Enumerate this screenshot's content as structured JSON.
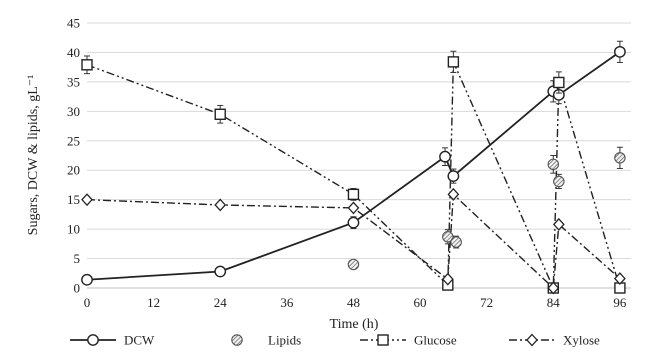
{
  "chart_data": {
    "type": "line",
    "xlabel": "Time (h)",
    "ylabel": "Sugars, DCW & lipids, gL⁻¹",
    "xlim": [
      0,
      98
    ],
    "ylim": [
      0,
      45
    ],
    "x_ticks": [
      0,
      12,
      24,
      36,
      48,
      60,
      72,
      84,
      96
    ],
    "y_ticks": [
      0,
      5,
      10,
      15,
      20,
      25,
      30,
      35,
      40,
      45
    ],
    "grid": "horizontal",
    "legend_position": "bottom",
    "series": [
      {
        "name": "DCW",
        "line": "solid",
        "marker": "circle-open",
        "points": [
          [
            0,
            1.4
          ],
          [
            24,
            2.8
          ],
          [
            48,
            11.1
          ],
          [
            64.5,
            22.3
          ],
          [
            66,
            19
          ],
          [
            84,
            33.4
          ],
          [
            85,
            32.8
          ],
          [
            96,
            40.1
          ]
        ],
        "errors": [
          0.5,
          0.5,
          1.0,
          1.5,
          1.2,
          1.8,
          1.5,
          1.8
        ]
      },
      {
        "name": "Lipids",
        "line": "none",
        "marker": "circle-hatched",
        "points": [
          [
            48,
            4.0
          ],
          [
            65,
            8.7
          ],
          [
            66.5,
            7.8
          ],
          [
            84,
            21.0
          ],
          [
            85,
            18.1
          ],
          [
            96,
            22.1
          ]
        ],
        "errors": [
          0.6,
          1.2,
          1.0,
          1.5,
          1.2,
          1.8
        ]
      },
      {
        "name": "Glucose",
        "line": "dash-dot-dot",
        "marker": "square-open",
        "points": [
          [
            0,
            37.9
          ],
          [
            24,
            29.5
          ],
          [
            48,
            15.9
          ],
          [
            65,
            0.5
          ],
          [
            66,
            38.4
          ],
          [
            84,
            0.0
          ],
          [
            85,
            34.9
          ],
          [
            96,
            0.0
          ]
        ],
        "errors": [
          1.5,
          1.5,
          1.0,
          0.4,
          1.8,
          0.3,
          1.8,
          0.3
        ]
      },
      {
        "name": "Xylose",
        "line": "dash-dot",
        "marker": "diamond-open",
        "points": [
          [
            0,
            15.0
          ],
          [
            24,
            14.1
          ],
          [
            48,
            13.6
          ],
          [
            65,
            1.5
          ],
          [
            66,
            15.9
          ],
          [
            84,
            0.0
          ],
          [
            85,
            10.8
          ],
          [
            96,
            1.6
          ]
        ],
        "errors": [
          0,
          0,
          0,
          0,
          0,
          0,
          0,
          0
        ]
      }
    ]
  }
}
